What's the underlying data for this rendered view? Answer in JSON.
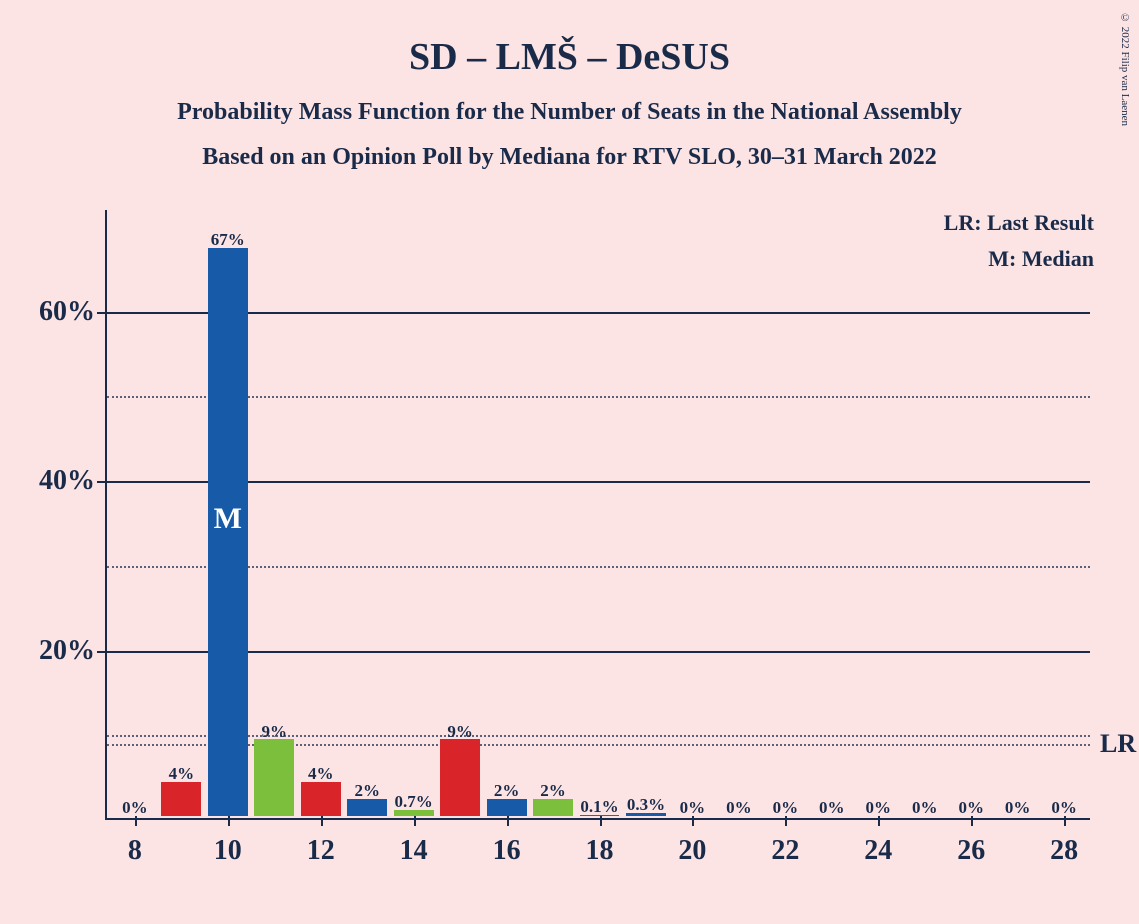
{
  "copyright": "© 2022 Filip van Laenen",
  "title": "SD – LMŠ – DeSUS",
  "subtitle1": "Probability Mass Function for the Number of Seats in the National Assembly",
  "subtitle2": "Based on an Opinion Poll by Mediana for RTV SLO, 30–31 March 2022",
  "legend": {
    "lr": "LR: Last Result",
    "m": "M: Median"
  },
  "chart": {
    "type": "bar",
    "background_color": "#fce4e4",
    "axis_color": "#1a2b4a",
    "text_color": "#1a2b4a",
    "colors": {
      "red": "#d9252a",
      "blue": "#165aa8",
      "green": "#7bbf3c"
    },
    "x_min": 7.4,
    "x_max": 28.6,
    "y_max_value": 72,
    "y_major": [
      20,
      40,
      60
    ],
    "y_minor": [
      10,
      30,
      50
    ],
    "y_major_labels": [
      "20%",
      "40%",
      "60%"
    ],
    "x_ticks": [
      8,
      10,
      12,
      14,
      16,
      18,
      20,
      22,
      24,
      26,
      28
    ],
    "x_tick_labels": [
      "8",
      "10",
      "12",
      "14",
      "16",
      "18",
      "20",
      "22",
      "24",
      "26",
      "28"
    ],
    "lr_value": 9,
    "lr_text": "LR",
    "median_x": 10,
    "median_text": "M",
    "bar_width_units": 0.86,
    "bars": [
      {
        "x": 8,
        "v": 0,
        "label": "0%",
        "color": "red"
      },
      {
        "x": 9,
        "v": 4,
        "label": "4%",
        "color": "red"
      },
      {
        "x": 10,
        "v": 67,
        "label": "67%",
        "color": "blue"
      },
      {
        "x": 11,
        "v": 9,
        "label": "9%",
        "color": "green"
      },
      {
        "x": 12,
        "v": 4,
        "label": "4%",
        "color": "red"
      },
      {
        "x": 13,
        "v": 2,
        "label": "2%",
        "color": "blue"
      },
      {
        "x": 14,
        "v": 0.7,
        "label": "0.7%",
        "color": "green"
      },
      {
        "x": 15,
        "v": 9,
        "label": "9%",
        "color": "red"
      },
      {
        "x": 16,
        "v": 2,
        "label": "2%",
        "color": "blue"
      },
      {
        "x": 17,
        "v": 2,
        "label": "2%",
        "color": "green"
      },
      {
        "x": 18,
        "v": 0.1,
        "label": "0.1%",
        "color": "red"
      },
      {
        "x": 19,
        "v": 0.3,
        "label": "0.3%",
        "color": "blue"
      },
      {
        "x": 20,
        "v": 0,
        "label": "0%",
        "color": "green"
      },
      {
        "x": 21,
        "v": 0,
        "label": "0%",
        "color": "red"
      },
      {
        "x": 22,
        "v": 0,
        "label": "0%",
        "color": "blue"
      },
      {
        "x": 23,
        "v": 0,
        "label": "0%",
        "color": "green"
      },
      {
        "x": 24,
        "v": 0,
        "label": "0%",
        "color": "red"
      },
      {
        "x": 25,
        "v": 0,
        "label": "0%",
        "color": "blue"
      },
      {
        "x": 26,
        "v": 0,
        "label": "0%",
        "color": "green"
      },
      {
        "x": 27,
        "v": 0,
        "label": "0%",
        "color": "red"
      },
      {
        "x": 28,
        "v": 0,
        "label": "0%",
        "color": "blue"
      }
    ]
  }
}
